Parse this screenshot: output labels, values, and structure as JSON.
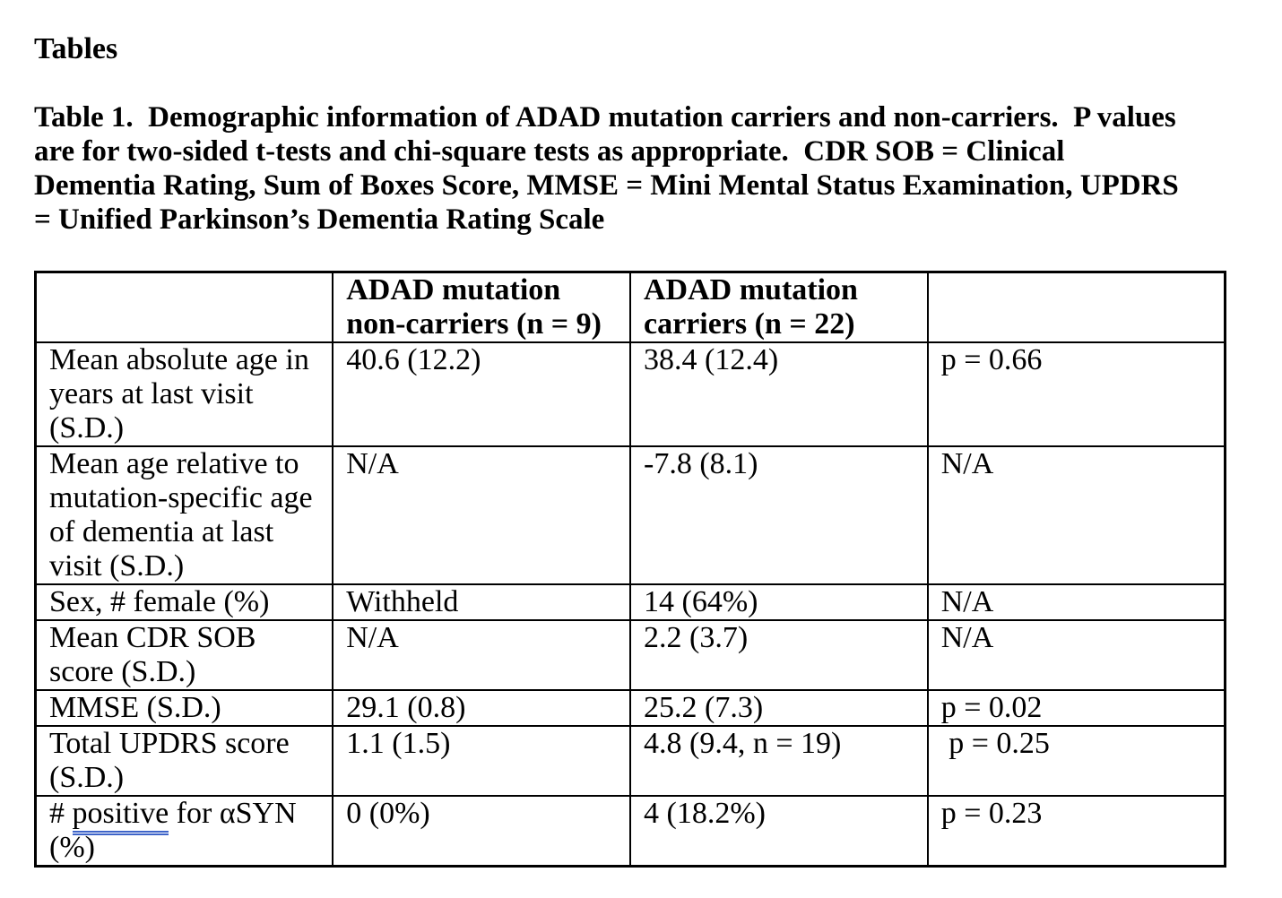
{
  "page": {
    "heading": "Tables"
  },
  "caption": {
    "lines": [
      "Table 1.  Demographic information of ADAD mutation carriers and non-carriers.  P values",
      "are for two-sided t-tests and chi-square tests as appropriate.  CDR SOB = Clinical",
      "Dementia Rating, Sum of Boxes Score, MMSE = Mini Mental Status Examination, UPDRS",
      "= Unified Parkinson’s Dementia Rating Scale"
    ]
  },
  "table": {
    "column_headers": [
      "",
      "ADAD mutation non-carriers (n = 9)",
      "ADAD mutation carriers (n = 22)",
      ""
    ],
    "rows": [
      {
        "label": "Mean absolute age in years at last visit (S.D.)",
        "non_carriers": "40.6 (12.2)",
        "carriers": "38.4 (12.4)",
        "p_value": "p = 0.66"
      },
      {
        "label": "Mean age relative to mutation-specific age of dementia at last visit (S.D.)",
        "non_carriers": "N/A",
        "carriers": "-7.8 (8.1)",
        "p_value": "N/A"
      },
      {
        "label": "Sex, # female (%)",
        "non_carriers": "Withheld",
        "carriers": "14 (64%)",
        "p_value": "N/A"
      },
      {
        "label": "Mean CDR SOB score (S.D.)",
        "non_carriers": "N/A",
        "carriers": "2.2 (3.7)",
        "p_value": "N/A"
      },
      {
        "label": "MMSE (S.D.)",
        "non_carriers": "29.1 (0.8)",
        "carriers": "25.2 (7.3)",
        "p_value": "p = 0.02"
      },
      {
        "label": "Total UPDRS score (S.D.)",
        "non_carriers": "1.1 (1.5)",
        "carriers": "4.8 (9.4, n = 19)",
        "p_value": " p = 0.25"
      },
      {
        "label": "# positive for αSYN (%)",
        "label_prefix": "# ",
        "label_marked": "positive",
        "label_suffix": " for αSYN (%)",
        "non_carriers": "0 (0%)",
        "carriers": "4 (18.2%)",
        "p_value": "p = 0.23"
      }
    ],
    "spellcheck": {
      "word": "positive",
      "underline_style": "double",
      "underline_color": "#3E64C8"
    }
  }
}
